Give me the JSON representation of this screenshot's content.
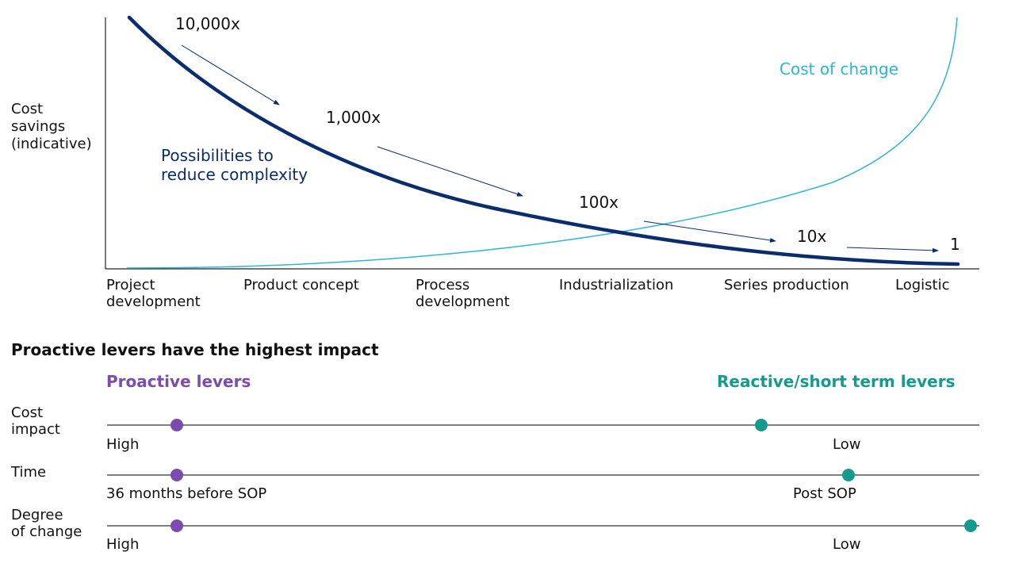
{
  "chart_data": {
    "type": "line",
    "ylabel": "Cost\nsavings\n(indicative)",
    "categories": [
      "Project\ndevelopment",
      "Product concept",
      "Process\ndevelopment",
      "Industrialization",
      "Series production",
      "Logistic"
    ],
    "series": [
      {
        "name": "Possibilities to\nreduce complexity",
        "color": "#0b2d6e",
        "trend": "decreasing"
      },
      {
        "name": "Cost of change",
        "color": "#2fb4d6",
        "trend": "increasing"
      }
    ],
    "multipliers": [
      "10,000x",
      "1,000x",
      "100x",
      "10x",
      "1"
    ]
  },
  "levers": {
    "title": "Proactive levers have the highest impact",
    "proactive_label": "Proactive levers",
    "reactive_label": "Reactive/short term levers",
    "proactive_color": "#7b4bb0",
    "reactive_color": "#149a8f",
    "rows": [
      {
        "label": "Cost\nimpact",
        "left": "High",
        "right": "Low",
        "proactive_pos": 0.08,
        "reactive_pos": 0.75
      },
      {
        "label": "Time",
        "left": "36 months before SOP",
        "right": "Post SOP",
        "proactive_pos": 0.08,
        "reactive_pos": 0.85
      },
      {
        "label": "Degree\nof change",
        "left": "High",
        "right": "Low",
        "proactive_pos": 0.08,
        "reactive_pos": 0.99
      }
    ]
  }
}
